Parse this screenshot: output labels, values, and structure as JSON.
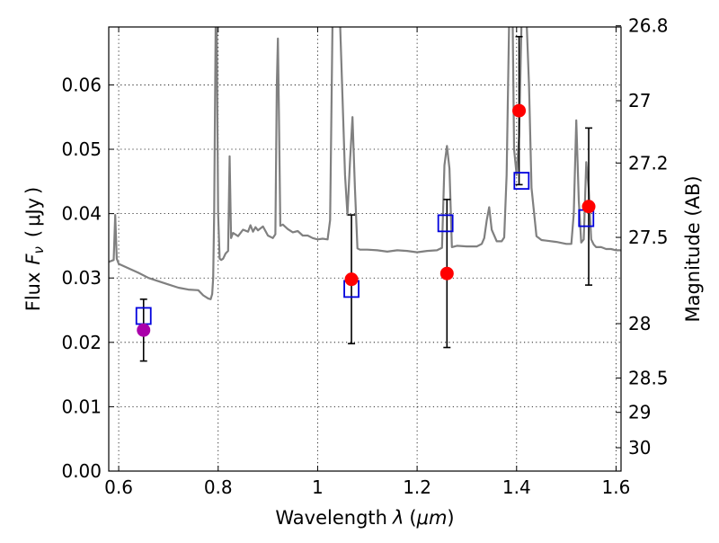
{
  "chart_data": {
    "type": "scatter",
    "title": "",
    "xlabel": "Wavelength",
    "xlabel_symbol": "λ",
    "xlabel_unit": "μm",
    "ylabel": "Flux",
    "ylabel_symbol": "F",
    "ylabel_subscript": "ν",
    "ylabel_unit": "μJy",
    "y2label": "Magnitude (AB)",
    "xlim": [
      0.58,
      1.61
    ],
    "ylim": [
      0.0,
      0.069
    ],
    "grid": true,
    "x_ticks": [
      0.6,
      0.8,
      1.0,
      1.2,
      1.4,
      1.6
    ],
    "x_tick_labels": [
      "0.6",
      "0.8",
      "1",
      "1.2",
      "1.4",
      "1.6"
    ],
    "y_ticks": [
      0.0,
      0.01,
      0.02,
      0.03,
      0.04,
      0.05,
      0.06
    ],
    "y_tick_labels": [
      "0.00",
      "0.01",
      "0.02",
      "0.03",
      "0.04",
      "0.05",
      "0.06"
    ],
    "y2_ticks": [
      26.8,
      27,
      27.2,
      27.5,
      28,
      28.5,
      29,
      30
    ],
    "y2_tick_labels": [
      "26.8",
      "27",
      "27.2",
      "27.5",
      "28",
      "28.5",
      "29",
      "30"
    ],
    "series": [
      {
        "role": "model-spectrum",
        "kind": "line",
        "color": "#808080",
        "x": [
          0.58,
          0.59,
          0.593,
          0.596,
          0.6,
          0.62,
          0.64,
          0.66,
          0.68,
          0.7,
          0.72,
          0.74,
          0.76,
          0.77,
          0.78,
          0.785,
          0.788,
          0.79,
          0.792,
          0.795,
          0.797,
          0.8,
          0.803,
          0.806,
          0.81,
          0.815,
          0.82,
          0.823,
          0.826,
          0.83,
          0.84,
          0.85,
          0.86,
          0.865,
          0.87,
          0.875,
          0.88,
          0.89,
          0.9,
          0.91,
          0.915,
          0.918,
          0.92,
          0.922,
          0.925,
          0.93,
          0.94,
          0.95,
          0.96,
          0.97,
          0.98,
          0.99,
          1.0,
          1.01,
          1.02,
          1.025,
          1.03,
          1.035,
          1.04,
          1.045,
          1.05,
          1.055,
          1.06,
          1.065,
          1.07,
          1.075,
          1.08,
          1.085,
          1.09,
          1.1,
          1.12,
          1.14,
          1.16,
          1.18,
          1.2,
          1.22,
          1.24,
          1.25,
          1.255,
          1.26,
          1.265,
          1.27,
          1.28,
          1.3,
          1.32,
          1.33,
          1.335,
          1.34,
          1.345,
          1.35,
          1.36,
          1.37,
          1.375,
          1.38,
          1.385,
          1.39,
          1.392,
          1.395,
          1.4,
          1.405,
          1.41,
          1.415,
          1.42,
          1.425,
          1.43,
          1.44,
          1.45,
          1.46,
          1.48,
          1.5,
          1.51,
          1.515,
          1.52,
          1.525,
          1.53,
          1.535,
          1.54,
          1.545,
          1.55,
          1.555,
          1.56,
          1.57,
          1.58,
          1.59,
          1.6,
          1.61
        ],
        "y": [
          0.0325,
          0.0328,
          0.0398,
          0.033,
          0.0322,
          0.0315,
          0.0308,
          0.03,
          0.0295,
          0.029,
          0.0285,
          0.0282,
          0.0281,
          0.0273,
          0.0268,
          0.0267,
          0.0275,
          0.03,
          0.04,
          0.07,
          0.07,
          0.04,
          0.033,
          0.0328,
          0.033,
          0.0338,
          0.0342,
          0.0489,
          0.0362,
          0.037,
          0.0365,
          0.0375,
          0.0372,
          0.0382,
          0.0372,
          0.0379,
          0.0374,
          0.038,
          0.0366,
          0.0362,
          0.0368,
          0.06,
          0.0672,
          0.056,
          0.0381,
          0.0383,
          0.0376,
          0.0371,
          0.0373,
          0.0366,
          0.0366,
          0.0362,
          0.036,
          0.0361,
          0.036,
          0.039,
          0.07,
          0.07,
          0.07,
          0.07,
          0.058,
          0.046,
          0.0398,
          0.048,
          0.055,
          0.044,
          0.0346,
          0.0344,
          0.0344,
          0.0344,
          0.0343,
          0.0341,
          0.0343,
          0.0342,
          0.034,
          0.0342,
          0.0343,
          0.0347,
          0.0475,
          0.0505,
          0.047,
          0.0348,
          0.035,
          0.0349,
          0.0349,
          0.0353,
          0.0362,
          0.039,
          0.041,
          0.0375,
          0.0357,
          0.0357,
          0.0363,
          0.046,
          0.07,
          0.07,
          0.07,
          0.05,
          0.046,
          0.052,
          0.07,
          0.07,
          0.07,
          0.06,
          0.044,
          0.0365,
          0.0359,
          0.0358,
          0.0356,
          0.0353,
          0.0353,
          0.04,
          0.0545,
          0.042,
          0.0355,
          0.036,
          0.048,
          0.044,
          0.036,
          0.0352,
          0.0348,
          0.0348,
          0.0345,
          0.0345,
          0.0343,
          0.0343
        ]
      },
      {
        "role": "observed-photometry",
        "kind": "points-with-errorbars",
        "color": "#ff0000",
        "points": [
          {
            "x": 1.068,
            "y": 0.0298,
            "yerr": 0.01
          },
          {
            "x": 1.26,
            "y": 0.0307,
            "yerr": 0.0115
          },
          {
            "x": 1.405,
            "y": 0.056,
            "yerr": 0.0115
          },
          {
            "x": 1.545,
            "y": 0.0411,
            "yerr": 0.0122
          }
        ]
      },
      {
        "role": "observed-photometry",
        "kind": "points-with-errorbars",
        "color": "#aa00aa",
        "points": [
          {
            "x": 0.65,
            "y": 0.0219,
            "yerr": 0.0048
          }
        ]
      },
      {
        "role": "model-photometry",
        "kind": "open-squares",
        "color": "#0000dd",
        "points": [
          {
            "x": 0.65,
            "y": 0.0241
          },
          {
            "x": 1.068,
            "y": 0.0283
          },
          {
            "x": 1.257,
            "y": 0.0385
          },
          {
            "x": 1.41,
            "y": 0.0451
          },
          {
            "x": 1.54,
            "y": 0.0393
          }
        ]
      }
    ]
  }
}
